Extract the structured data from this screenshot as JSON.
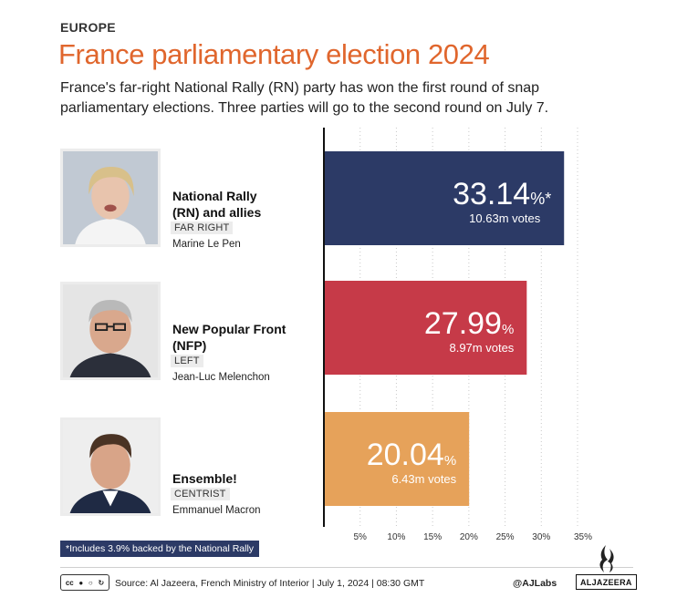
{
  "header": {
    "kicker": "EUROPE",
    "title": "France parliamentary election 2024",
    "subtitle": "France's far-right National Rally (RN) party has won the first round of snap parliamentary elections. Three parties will go to the second round on July 7."
  },
  "parties": [
    {
      "name_line1": "National Rally",
      "name_line2": "(RN) and allies",
      "tag": "FAR RIGHT",
      "leader": "Marine Le Pen"
    },
    {
      "name_line1": "New Popular Front",
      "name_line2": "(NFP)",
      "tag": "LEFT",
      "leader": "Jean-Luc Melenchon"
    },
    {
      "name_line1": "Ensemble!",
      "name_line2": "",
      "tag": "CENTRIST",
      "leader": "Emmanuel Macron"
    }
  ],
  "chart_data": {
    "type": "bar",
    "orientation": "horizontal",
    "categories": [
      "National Rally (RN) and allies",
      "New Popular Front (NFP)",
      "Ensemble!"
    ],
    "values": [
      33.14,
      27.99,
      20.04
    ],
    "value_labels": [
      "33.14",
      "27.99",
      "20.04"
    ],
    "value_suffixes": [
      "%*",
      "%",
      "%"
    ],
    "votes": [
      "10.63m votes",
      "8.97m votes",
      "6.43m votes"
    ],
    "colors": [
      "#2c3a66",
      "#c63a48",
      "#e6a25a"
    ],
    "xlim": [
      0,
      35
    ],
    "xticks": [
      5,
      10,
      15,
      20,
      25,
      30,
      35
    ],
    "xtick_labels": [
      "5%",
      "10%",
      "15%",
      "20%",
      "25%",
      "30%",
      "35%"
    ],
    "grid": "dotted-vertical"
  },
  "footnote": "*Includes 3.9% backed by the National Rally",
  "footer": {
    "cc_label": "cc",
    "source": "Source: Al Jazeera, French Ministry of Interior  |  July 1, 2024 | 08:30 GMT",
    "handle": "@AJLabs",
    "logo_word": "ALJAZEERA"
  }
}
